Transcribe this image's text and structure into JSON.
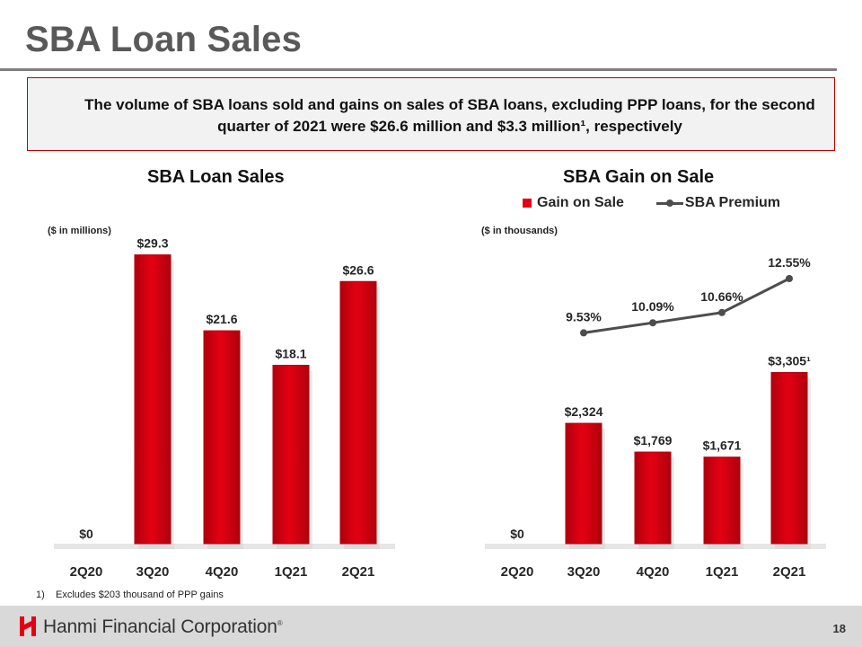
{
  "slide": {
    "title": "SBA Loan Sales",
    "callout": "The volume of SBA loans sold and gains on sales of SBA loans, excluding PPP loans, for the second quarter of 2021 were $26.6 million and $3.3 million¹, respectively",
    "footnote_num": "1)",
    "footnote_text": "Excludes $203 thousand of PPP gains",
    "company": "Hanmi Financial Corporation",
    "trademark": "®",
    "page_number": "18"
  },
  "colors": {
    "bar": "#e40013",
    "bar_edge": "#b0000c",
    "line": "#4d4d4d",
    "rule": "#7f7f7f",
    "callout_border": "#c00000"
  },
  "chart_data": [
    {
      "type": "bar",
      "title": "SBA Loan Sales",
      "unit_label": "($ in millions)",
      "categories": [
        "2Q20",
        "3Q20",
        "4Q20",
        "1Q21",
        "2Q21"
      ],
      "values": [
        0,
        29.3,
        21.6,
        18.1,
        26.6
      ],
      "data_labels": [
        "$0",
        "$29.3",
        "$21.6",
        "$18.1",
        "$26.6"
      ],
      "ylim": [
        0,
        31
      ],
      "grid": false,
      "legend": "none"
    },
    {
      "type": "bar",
      "title": "SBA Gain on Sale",
      "unit_label": "($ in thousands)",
      "categories": [
        "2Q20",
        "3Q20",
        "4Q20",
        "1Q21",
        "2Q21"
      ],
      "series": [
        {
          "name": "Gain on Sale",
          "type": "bar",
          "values": [
            0,
            2324,
            1769,
            1671,
            3305
          ],
          "data_labels": [
            "$0",
            "$2,324",
            "$1,769",
            "$1,671",
            "$3,305¹"
          ]
        },
        {
          "name": "SBA Premium",
          "type": "line",
          "values": [
            null,
            9.53,
            10.09,
            10.66,
            12.55
          ],
          "data_labels": [
            "",
            "9.53%",
            "10.09%",
            "10.66%",
            "12.55%"
          ]
        }
      ],
      "ylim": [
        0,
        5900
      ],
      "y2lim": [
        1.0,
        15.0
      ],
      "grid": false,
      "legend": "top"
    }
  ]
}
